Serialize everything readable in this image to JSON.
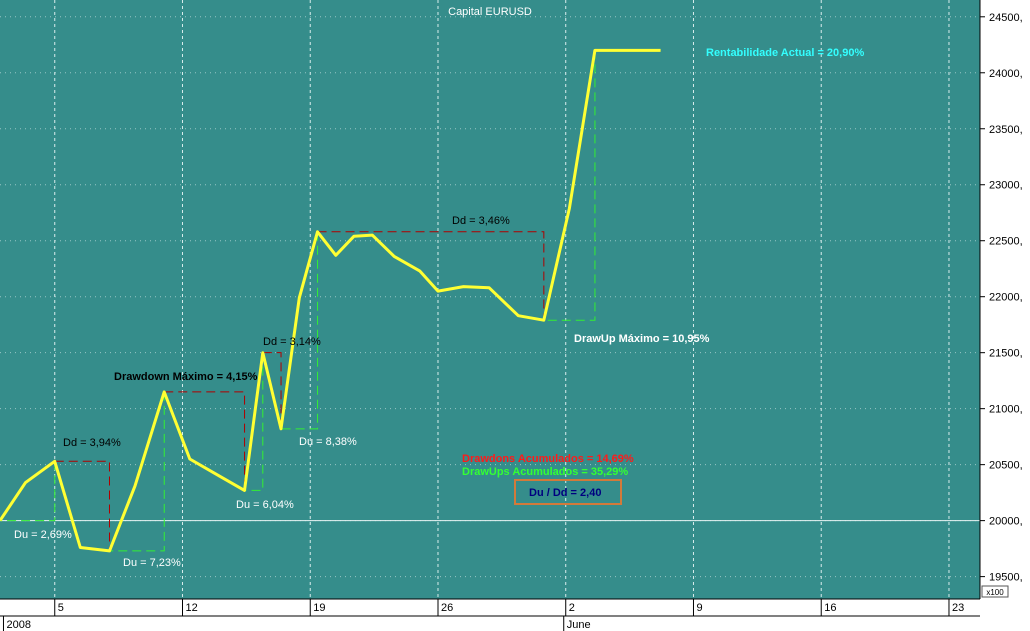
{
  "chart_data": {
    "type": "line",
    "title": "Capital EURUSD",
    "y_unit_label": "x100",
    "ylim": [
      19300,
      24650
    ],
    "y_ticks": [
      19500,
      20000,
      20500,
      21000,
      21500,
      22000,
      22500,
      23000,
      23500,
      24000,
      24500
    ],
    "y_tick_labels": [
      "19500,",
      "20000,",
      "20500,",
      "21000,",
      "21500,",
      "22000,",
      "22500,",
      "23000,",
      "23500,",
      "24000,",
      "24500,"
    ],
    "reference_line": 20000,
    "x_ticks": [
      {
        "label": "5",
        "x": 3
      },
      {
        "label": "12",
        "x": 10
      },
      {
        "label": "19",
        "x": 17
      },
      {
        "label": "26",
        "x": 24
      },
      {
        "label": "2",
        "x": 31
      },
      {
        "label": "9",
        "x": 38
      },
      {
        "label": "16",
        "x": 45
      },
      {
        "label": "23",
        "x": 52
      }
    ],
    "x_period_labels": [
      {
        "label": "2008",
        "x": 0.3
      },
      {
        "label": "June",
        "x": 31
      }
    ],
    "xlim": [
      0,
      53.7
    ],
    "series": [
      {
        "color": "#ffff33",
        "x": [
          0,
          1.4,
          3,
          4.4,
          6,
          7.4,
          9,
          10.4,
          12,
          13.4,
          14.4,
          15.4,
          16.4,
          17.4,
          18.4,
          19.4,
          20.4,
          21.6,
          23,
          24,
          25.4,
          26.8,
          28.4,
          29.8,
          31.2,
          32.6,
          33.8,
          35,
          36.2
        ],
        "values": [
          20000,
          20340,
          20530,
          19760,
          19730,
          20310,
          21150,
          20550,
          20400,
          20270,
          21500,
          20820,
          21990,
          22580,
          22370,
          22540,
          22550,
          22360,
          22230,
          22050,
          22090,
          22080,
          21830,
          21790,
          22790,
          24200,
          24200,
          24200,
          24200
        ]
      }
    ],
    "annotations": [
      {
        "text": "Du = 2,69%",
        "color": "#ffffff"
      },
      {
        "text": "Dd = 3,94%",
        "color": "#000000"
      },
      {
        "text": "Du = 7,23%",
        "color": "#ffffff"
      },
      {
        "text": "Drawdown Máximo = 4,15%",
        "color": "#000000"
      },
      {
        "text": "Du = 6,04%",
        "color": "#ffffff"
      },
      {
        "text": "Dd = 3,14%",
        "color": "#000000"
      },
      {
        "text": "Du = 8,38%",
        "color": "#ffffff"
      },
      {
        "text": "Dd = 3,46%",
        "color": "#000000"
      },
      {
        "text": "DrawUp Máximo = 10,95%",
        "color": "#ffffff"
      },
      {
        "text": "Rentabilidade Actual = 20,90%",
        "color": "#33ffff"
      },
      {
        "text": "Drawdons Acumulados = 14,69%",
        "color": "#ff1a1a"
      },
      {
        "text": "DrawUps Acumulados = 35,29%",
        "color": "#33ff33"
      },
      {
        "text": "Du / Dd = 2,40",
        "color": "#000080"
      }
    ],
    "drawdowns": [
      {
        "x_start": 3,
        "x_end": 6,
        "from": 20530,
        "to": 19730
      },
      {
        "x_start": 9,
        "x_end": 13.4,
        "from": 21150,
        "to": 20270
      },
      {
        "x_start": 14.4,
        "x_end": 15.4,
        "from": 21500,
        "to": 20820
      },
      {
        "x_start": 17.4,
        "x_end": 29.8,
        "from": 22580,
        "to": 21790
      }
    ],
    "drawups": [
      {
        "x_start": 0,
        "x_end": 3,
        "from": 20000,
        "to": 20530
      },
      {
        "x_start": 6,
        "x_end": 9,
        "from": 19730,
        "to": 21150
      },
      {
        "x_start": 13.4,
        "x_end": 14.4,
        "from": 20270,
        "to": 21500
      },
      {
        "x_start": 15.4,
        "x_end": 17.4,
        "from": 20820,
        "to": 22580
      },
      {
        "x_start": 29.8,
        "x_end": 32.6,
        "from": 21790,
        "to": 24200
      }
    ],
    "grid": true,
    "colors": {
      "background": "#358d8b",
      "grid": "#d8ecec",
      "line": "#ffff33",
      "drawdown": "#b00000",
      "drawup": "#33ee33",
      "axis_panel": "#ffffff",
      "ratio_box_border": "#d27a3a"
    }
  }
}
